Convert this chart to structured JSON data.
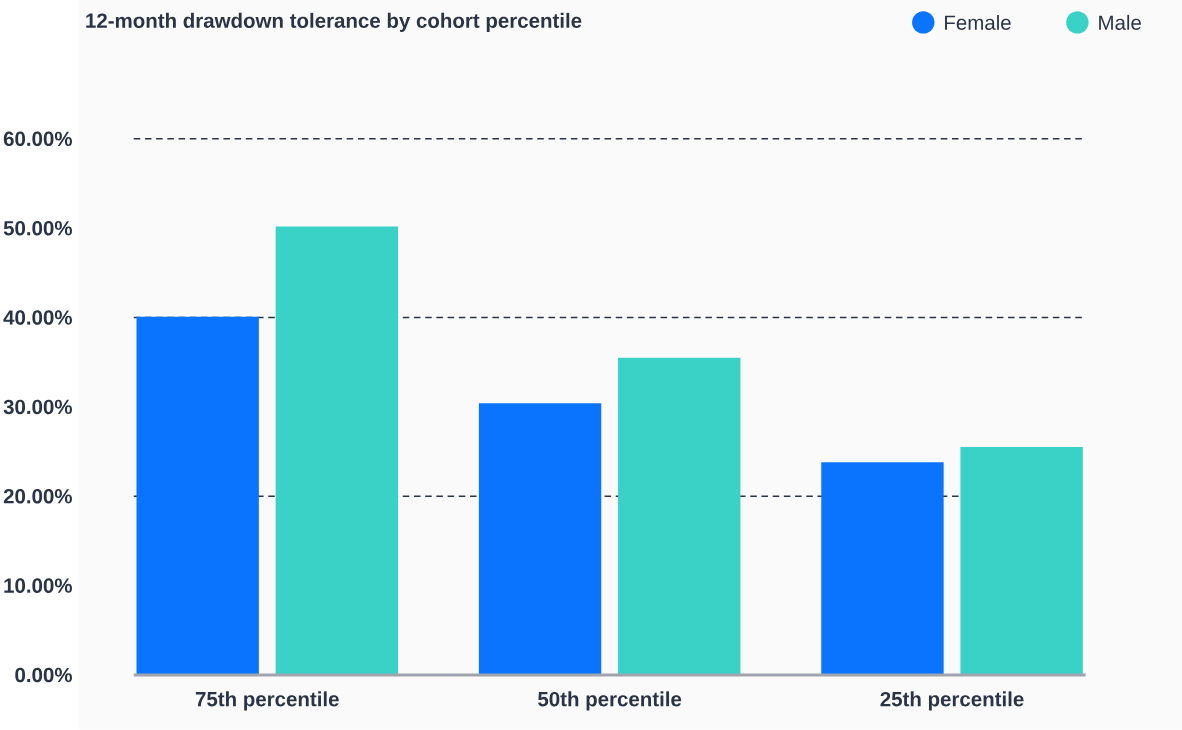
{
  "chart_data": {
    "type": "bar",
    "title": "12-month drawdown tolerance by cohort percentile",
    "categories": [
      "75th percentile",
      "50th percentile",
      "25th percentile"
    ],
    "series": [
      {
        "name": "Female",
        "color": "#0a74ff",
        "values": [
          40.1,
          30.4,
          23.8
        ]
      },
      {
        "name": "Male",
        "color": "#3ad1c6",
        "values": [
          50.2,
          35.5,
          25.5
        ]
      }
    ],
    "ylim": [
      0,
      60
    ],
    "yticks": [
      {
        "value": 0,
        "label": "0.00%"
      },
      {
        "value": 10,
        "label": "10.00%"
      },
      {
        "value": 20,
        "label": "20.00%"
      },
      {
        "value": 30,
        "label": "30.00%"
      },
      {
        "value": 40,
        "label": "40.00%"
      },
      {
        "value": 50,
        "label": "50.00%"
      },
      {
        "value": 60,
        "label": "60.00%"
      }
    ],
    "grid": "y",
    "legend": "top right"
  }
}
